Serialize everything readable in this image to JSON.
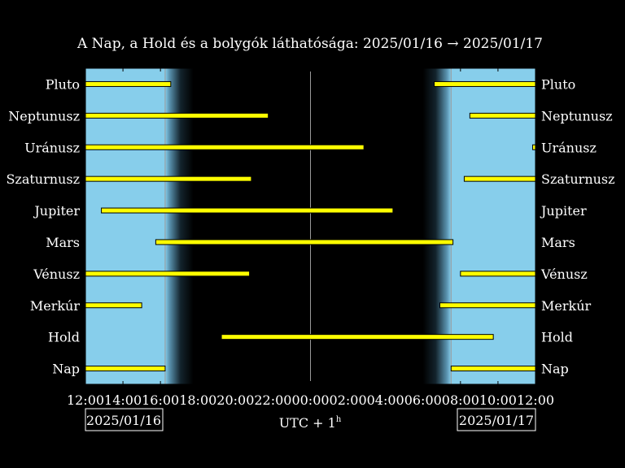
{
  "chart_data": {
    "type": "bar",
    "title": "A Nap, a Hold és a bolygók láthatósága: 2025/01/16 → 2025/01/17",
    "xlabel": "UTC + 1",
    "xlabel_sup": "h",
    "x_start_label": "2025/01/16",
    "x_end_label": "2025/01/17",
    "xlim_hours": [
      12,
      36
    ],
    "x_ticks": [
      "12:00",
      "14:00",
      "16:00",
      "18:00",
      "20:00",
      "22:00",
      "00:00",
      "02:00",
      "04:00",
      "06:00",
      "08:00",
      "10:00",
      "12:00"
    ],
    "sunset_hour": 16.25,
    "sunrise_hour": 31.5,
    "twilight_end_hour": 17.75,
    "twilight_start_hour": 30.0,
    "midnight_hour": 24,
    "colors": {
      "day": "#87ceeb",
      "night": "#000000",
      "bar": "#ffff00",
      "bar_edge": "#000000",
      "line": "#b0b0b0"
    },
    "categories": [
      "Pluto",
      "Neptunusz",
      "Uránusz",
      "Szaturnusz",
      "Jupiter",
      "Mars",
      "Vénusz",
      "Merkúr",
      "Hold",
      "Nap"
    ],
    "series": [
      {
        "name": "Pluto",
        "segments": [
          [
            12,
            16.55
          ],
          [
            30.6,
            36
          ]
        ]
      },
      {
        "name": "Neptunusz",
        "segments": [
          [
            12,
            21.75
          ],
          [
            32.5,
            36
          ]
        ]
      },
      {
        "name": "Uránusz",
        "segments": [
          [
            12,
            26.85
          ],
          [
            35.85,
            36
          ]
        ]
      },
      {
        "name": "Szaturnusz",
        "segments": [
          [
            12,
            20.85
          ],
          [
            32.2,
            36
          ]
        ]
      },
      {
        "name": "Jupiter",
        "segments": [
          [
            12.85,
            28.4
          ]
        ]
      },
      {
        "name": "Mars",
        "segments": [
          [
            15.75,
            31.6
          ]
        ]
      },
      {
        "name": "Vénusz",
        "segments": [
          [
            12,
            20.75
          ],
          [
            32.0,
            36
          ]
        ]
      },
      {
        "name": "Merkúr",
        "segments": [
          [
            12,
            15.0
          ],
          [
            30.9,
            36
          ]
        ]
      },
      {
        "name": "Hold",
        "segments": [
          [
            19.25,
            33.75
          ]
        ]
      },
      {
        "name": "Nap",
        "segments": [
          [
            12,
            16.25
          ],
          [
            31.5,
            36
          ]
        ]
      }
    ]
  }
}
